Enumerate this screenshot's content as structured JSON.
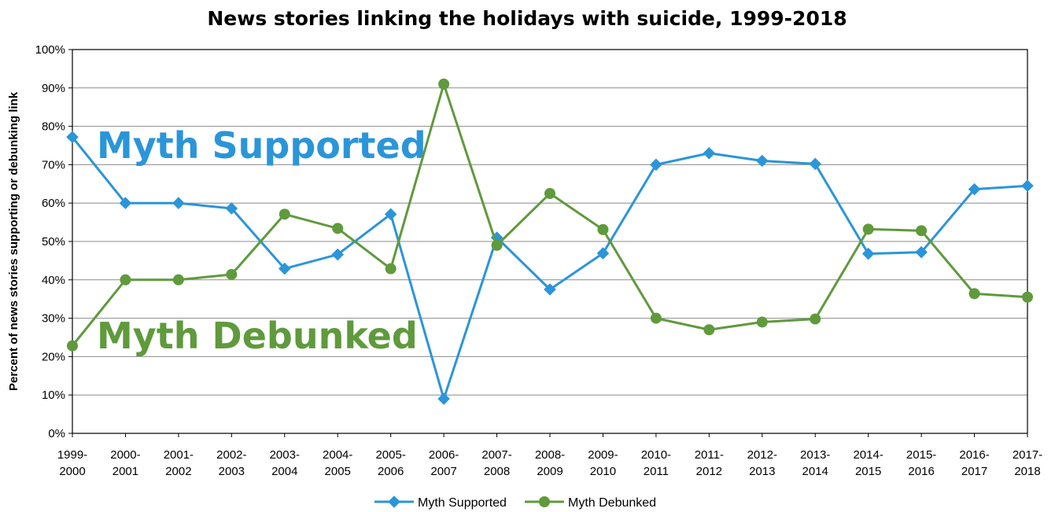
{
  "chart_data": {
    "type": "line",
    "title": "News stories linking the holidays with suicide, 1999-2018",
    "xlabel": "",
    "ylabel": "Percent of news stories supporting or debunking link",
    "ylim": [
      0,
      100
    ],
    "yticks": [
      "0%",
      "10%",
      "20%",
      "30%",
      "40%",
      "50%",
      "60%",
      "70%",
      "80%",
      "90%",
      "100%"
    ],
    "grid": true,
    "legend": "bottom",
    "categories": [
      [
        "1999-",
        "2000"
      ],
      [
        "2000-",
        "2001"
      ],
      [
        "2001-",
        "2002"
      ],
      [
        "2002-",
        "2003"
      ],
      [
        "2003-",
        "2004"
      ],
      [
        "2004-",
        "2005"
      ],
      [
        "2005-",
        "2006"
      ],
      [
        "2006-",
        "2007"
      ],
      [
        "2007-",
        "2008"
      ],
      [
        "2008-",
        "2009"
      ],
      [
        "2009-",
        "2010"
      ],
      [
        "2010-",
        "2011"
      ],
      [
        "2011-",
        "2012"
      ],
      [
        "2012-",
        "2013"
      ],
      [
        "2013-",
        "2014"
      ],
      [
        "2014-",
        "2015"
      ],
      [
        "2015-",
        "2016"
      ],
      [
        "2016-",
        "2017"
      ],
      [
        "2017-",
        "2018"
      ]
    ],
    "series": [
      {
        "name": "Myth Supported",
        "color": "#2b95d9",
        "marker": "diamond",
        "values": [
          77.2,
          60,
          60,
          58.6,
          42.9,
          46.6,
          57.1,
          9,
          51,
          37.5,
          46.9,
          70,
          73,
          71,
          70.2,
          46.8,
          47.2,
          63.6,
          64.5
        ]
      },
      {
        "name": "Myth Debunked",
        "color": "#5f9a3c",
        "marker": "circle",
        "values": [
          22.8,
          40,
          40,
          41.4,
          57.1,
          53.4,
          42.9,
          91,
          49,
          62.5,
          53.1,
          30,
          27,
          29,
          29.8,
          53.2,
          52.8,
          36.4,
          35.5
        ]
      }
    ],
    "annotations": [
      {
        "text": "Myth Supported",
        "color": "#2b95d9"
      },
      {
        "text": "Myth Debunked",
        "color": "#5f9a3c"
      }
    ]
  }
}
